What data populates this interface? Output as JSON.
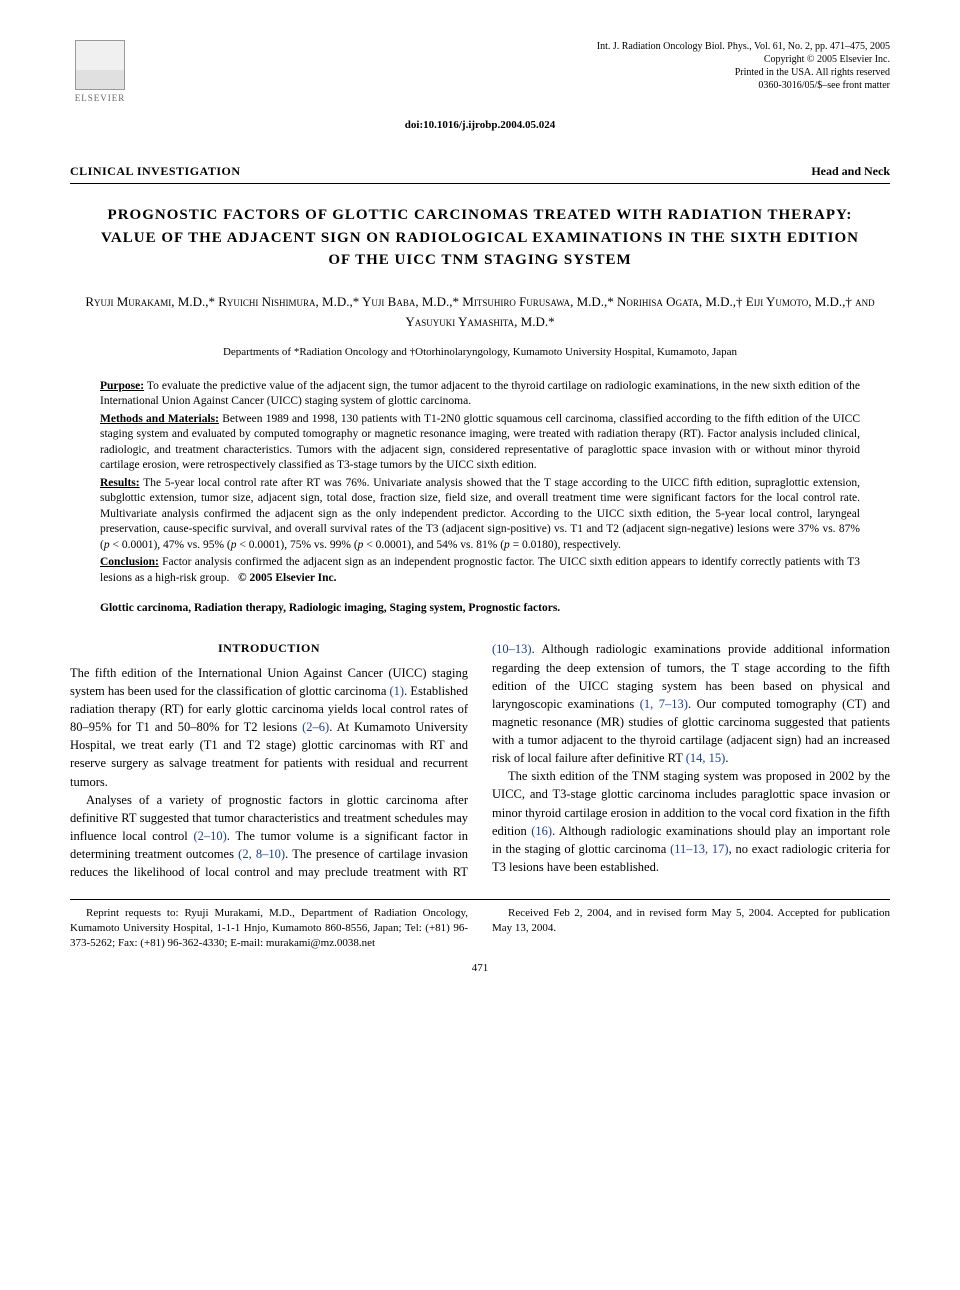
{
  "header": {
    "publisher_logo_text": "ELSEVIER",
    "journal_line1": "Int. J. Radiation Oncology Biol. Phys., Vol. 61, No. 2, pp. 471–475, 2005",
    "journal_line2": "Copyright © 2005 Elsevier Inc.",
    "journal_line3": "Printed in the USA. All rights reserved",
    "journal_line4": "0360-3016/05/$–see front matter",
    "doi": "doi:10.1016/j.ijrobp.2004.05.024"
  },
  "section": {
    "left": "CLINICAL INVESTIGATION",
    "right": "Head and Neck"
  },
  "title": "PROGNOSTIC FACTORS OF GLOTTIC CARCINOMAS TREATED WITH RADIATION THERAPY: VALUE OF THE ADJACENT SIGN ON RADIOLOGICAL EXAMINATIONS IN THE SIXTH EDITION OF THE UICC TNM STAGING SYSTEM",
  "authors": "Ryuji Murakami, M.D.,* Ryuichi Nishimura, M.D.,* Yuji Baba, M.D.,* Mitsuhiro Furusawa, M.D.,* Norihisa Ogata, M.D.,† Eiji Yumoto, M.D.,† and Yasuyuki Yamashita, M.D.*",
  "affiliations": "Departments of *Radiation Oncology and †Otorhinolaryngology, Kumamoto University Hospital, Kumamoto, Japan",
  "abstract": {
    "purpose_label": "Purpose:",
    "purpose": " To evaluate the predictive value of the adjacent sign, the tumor adjacent to the thyroid cartilage on radiologic examinations, in the new sixth edition of the International Union Against Cancer (UICC) staging system of glottic carcinoma.",
    "methods_label": "Methods and Materials:",
    "methods": " Between 1989 and 1998, 130 patients with T1-2N0 glottic squamous cell carcinoma, classified according to the fifth edition of the UICC staging system and evaluated by computed tomography or magnetic resonance imaging, were treated with radiation therapy (RT). Factor analysis included clinical, radiologic, and treatment characteristics. Tumors with the adjacent sign, considered representative of paraglottic space invasion with or without minor thyroid cartilage erosion, were retrospectively classified as T3-stage tumors by the UICC sixth edition.",
    "results_label": "Results:",
    "results_part1": " The 5-year local control rate after RT was 76%. Univariate analysis showed that the T stage according to the UICC fifth edition, supraglottic extension, subglottic extension, tumor size, adjacent sign, total dose, fraction size, field size, and overall treatment time were significant factors for the local control rate. Multivariate analysis confirmed the adjacent sign as the only independent predictor. According to the UICC sixth edition, the 5-year local control, laryngeal preservation, cause-specific survival, and overall survival rates of the T3 (adjacent sign-positive) vs. T1 and T2 (adjacent sign-negative) lesions were 37% vs. 87% (",
    "results_p1": "p",
    "results_part2": " < 0.0001), 47% vs. 95% (",
    "results_p2": "p",
    "results_part3": " < 0.0001), 75% vs. 99% (",
    "results_p3": "p",
    "results_part4": " < 0.0001), and 54% vs. 81% (",
    "results_p4": "p",
    "results_part5": " = 0.0180), respectively.",
    "conclusion_label": "Conclusion:",
    "conclusion": " Factor analysis confirmed the adjacent sign as an independent prognostic factor. The UICC sixth edition appears to identify correctly patients with T3 lesions as a high-risk group.",
    "copyright": "© 2005 Elsevier Inc."
  },
  "keywords": "Glottic carcinoma, Radiation therapy, Radiologic imaging, Staging system, Prognostic factors.",
  "introduction": {
    "heading": "INTRODUCTION",
    "para1_a": "The fifth edition of the International Union Against Cancer (UICC) staging system has been used for the classification of glottic carcinoma ",
    "ref1": "(1)",
    "para1_b": ". Established radiation therapy (RT) for early glottic carcinoma yields local control rates of 80–95% for T1 and 50–80% for T2 lesions ",
    "ref2": "(2–6)",
    "para1_c": ". At Kumamoto University Hospital, we treat early (T1 and T2 stage) glottic carcinomas with RT and reserve surgery as salvage treatment for patients with residual and recurrent tumors.",
    "para2_a": "Analyses of a variety of prognostic factors in glottic carcinoma after definitive RT suggested that tumor characteristics and treatment schedules may influence local control ",
    "ref3": "(2–10)",
    "para2_b": ". The tumor volume is a significant factor in determining treatment outcomes ",
    "ref4": "(2, 8–10)",
    "para2_c": ". The presence of cartilage invasion reduces the likelihood of local control and may preclude treatment with RT ",
    "ref5": "(10–13)",
    "para2_d": ". Although radiologic examinations provide additional information regarding the deep extension of tumors, the T stage according to the fifth edition of the UICC staging system has been based on physical and laryngoscopic examinations ",
    "ref6": "(1, 7–13)",
    "para2_e": ". Our computed tomography (CT) and magnetic resonance (MR) studies of glottic carcinoma suggested that patients with a tumor adjacent to the thyroid cartilage (adjacent sign) had an increased risk of local failure after definitive RT ",
    "ref7": "(14, 15)",
    "para2_f": ".",
    "para3_a": "The sixth edition of the TNM staging system was proposed in 2002 by the UICC, and T3-stage glottic carcinoma includes paraglottic space invasion or minor thyroid cartilage erosion in addition to the vocal cord fixation in the fifth edition ",
    "ref8": "(16)",
    "para3_b": ". Although radiologic examinations should play an important role in the staging of glottic carcinoma ",
    "ref9": "(11–13, 17)",
    "para3_c": ", no exact radiologic criteria for T3 lesions have been established."
  },
  "footer": {
    "reprint": "Reprint requests to: Ryuji Murakami, M.D., Department of Radiation Oncology, Kumamoto University Hospital, 1-1-1 Hnjo, Kumamoto 860-8556, Japan; Tel: (+81) 96-373-5262; Fax: (+81) 96-362-4330; E-mail: murakami@mz.0038.net",
    "received": "Received Feb 2, 2004, and in revised form May 5, 2004. Accepted for publication May 13, 2004."
  },
  "page_number": "471",
  "colors": {
    "text": "#000000",
    "link": "#1a3d8f",
    "background": "#ffffff"
  }
}
